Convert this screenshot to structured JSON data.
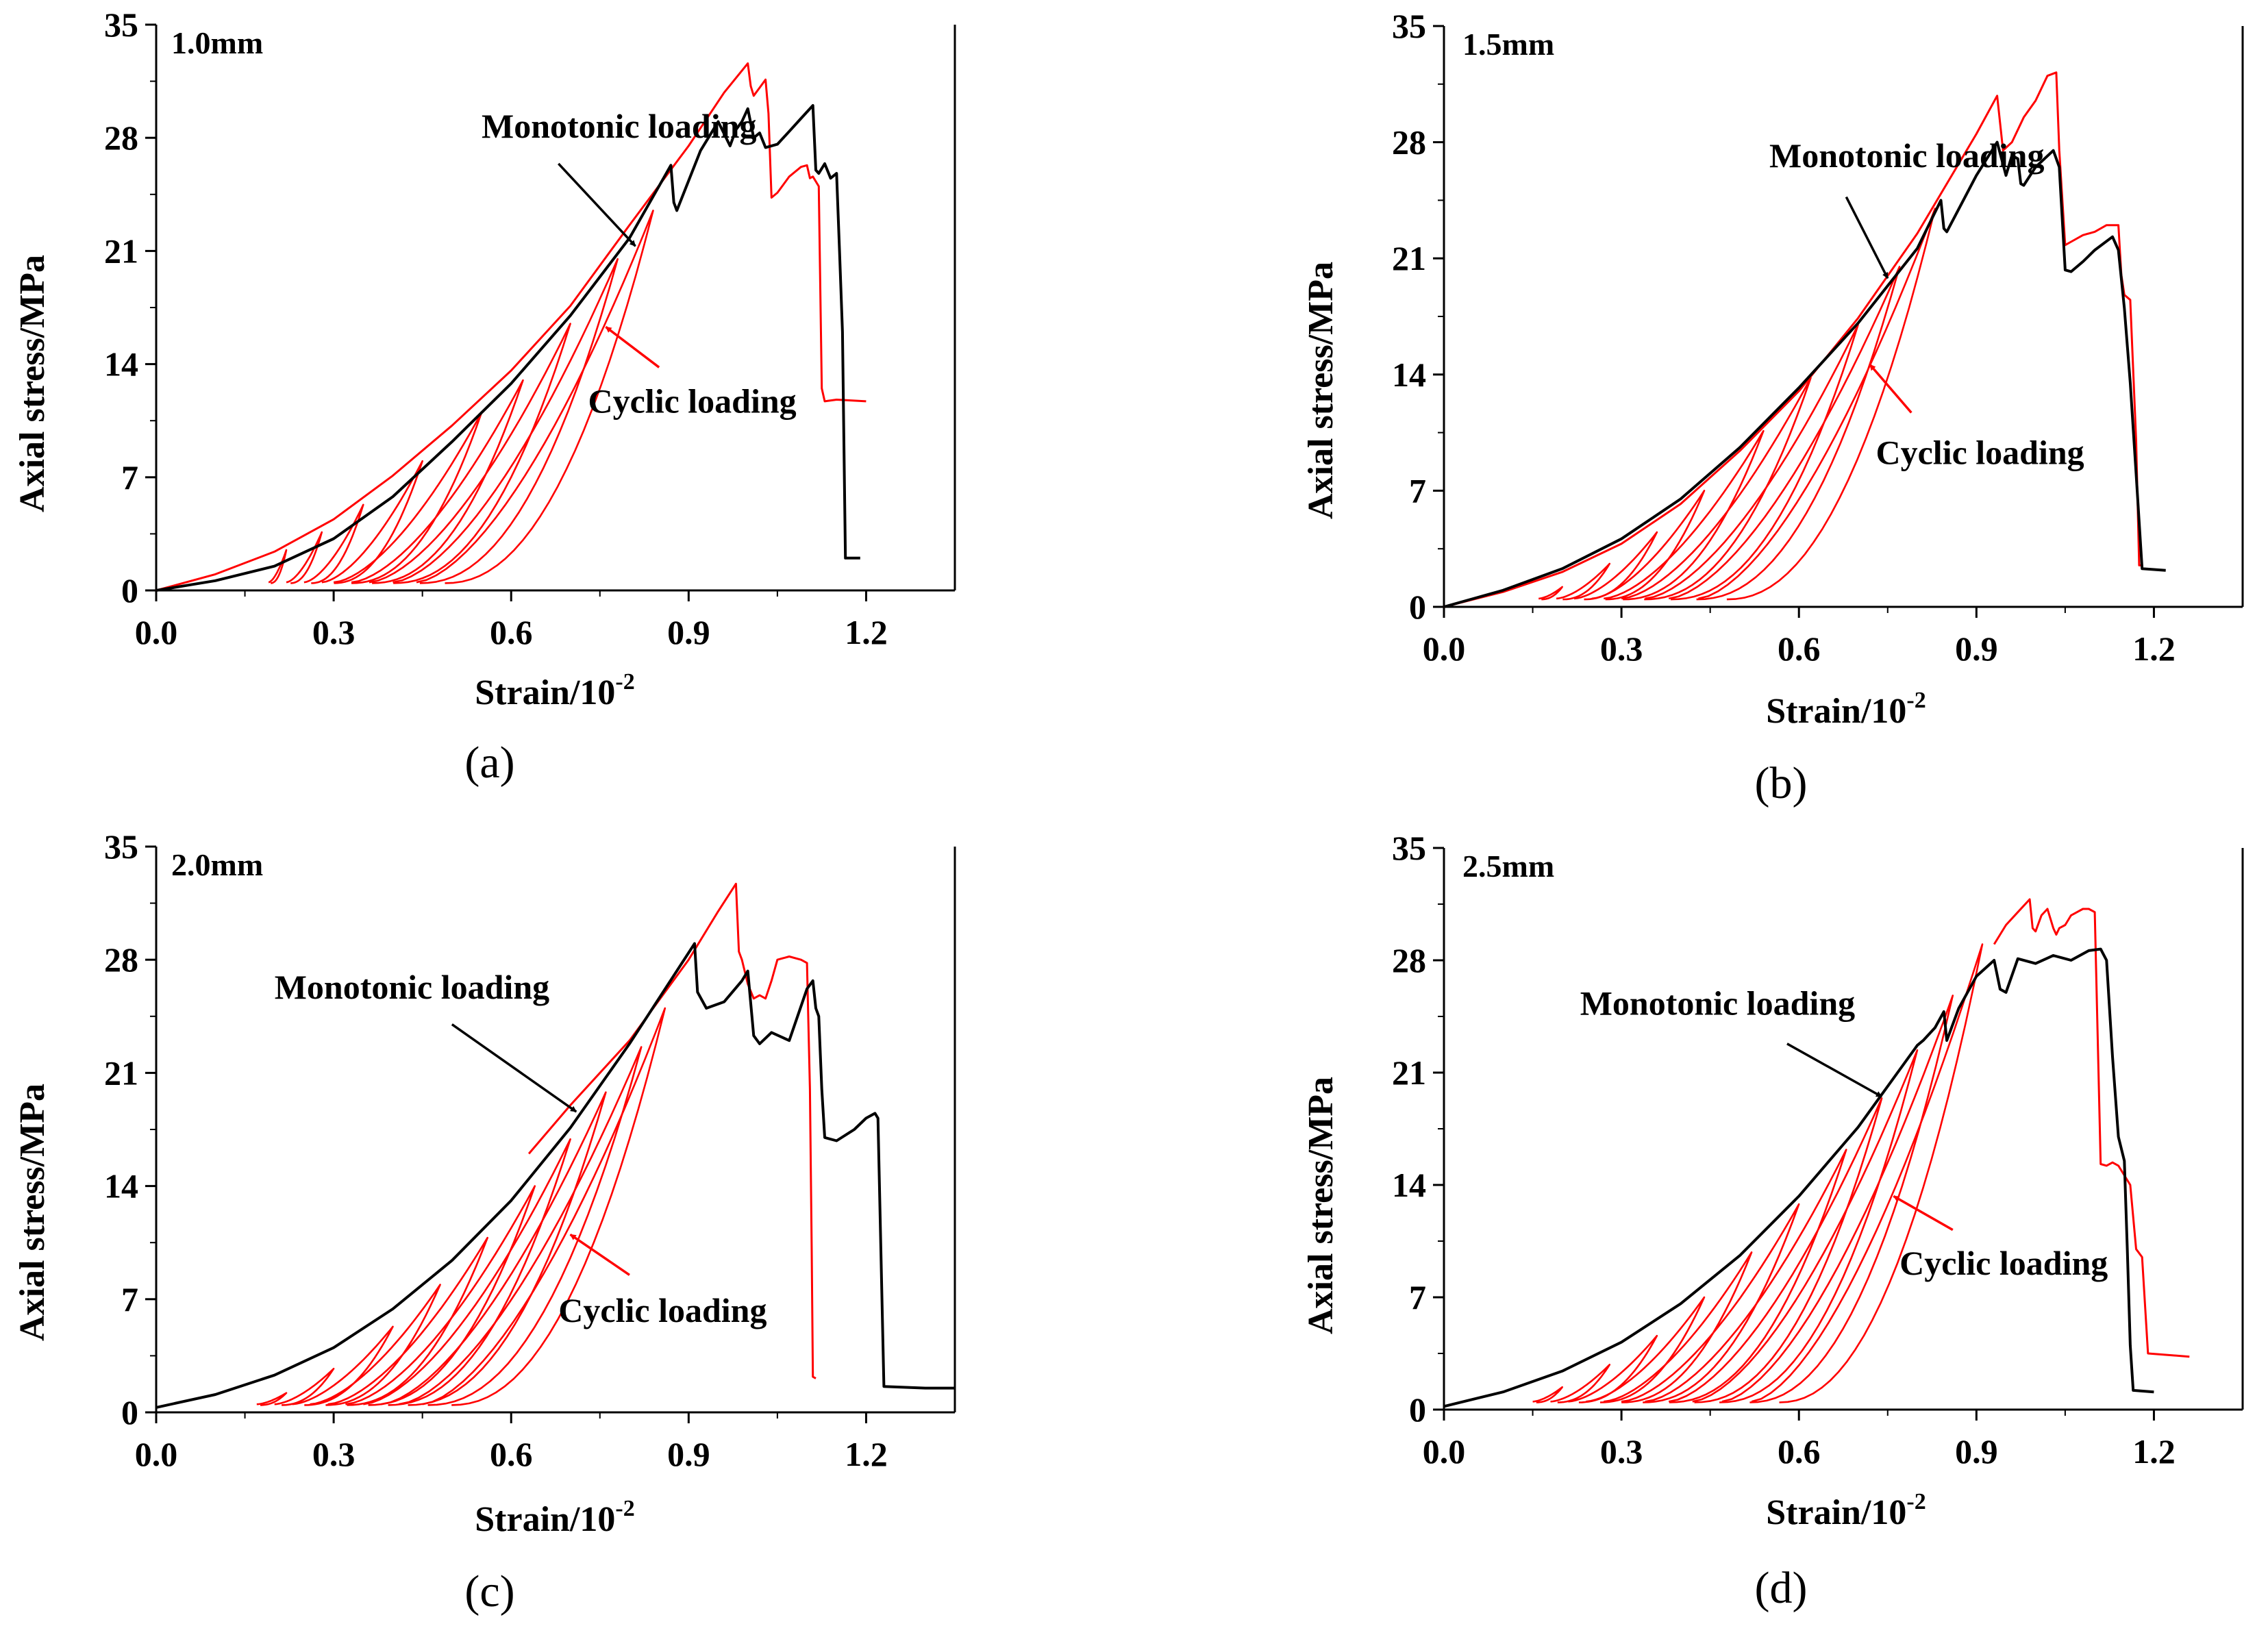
{
  "colors": {
    "monotonic": "#000000",
    "cyclic": "#ff0000",
    "axis": "#000000"
  },
  "chart_data": [
    {
      "id": "a",
      "type": "line",
      "caption": "(a)",
      "tag": "1.0mm",
      "xlabel": "Strain/10",
      "xlabel_sup": "-2",
      "ylabel": "Axial stress/MPa",
      "xlim": [
        0.0,
        1.35
      ],
      "ylim": [
        0,
        35
      ],
      "xticks": [
        0.0,
        0.3,
        0.6,
        0.9,
        1.2
      ],
      "xtick_labels": [
        "0.0",
        "0.3",
        "0.6",
        "0.9",
        "1.2"
      ],
      "yticks": [
        0,
        7,
        14,
        21,
        28,
        35
      ],
      "ytick_labels": [
        "0",
        "7",
        "14",
        "21",
        "28",
        "35"
      ],
      "annotations": {
        "monotonic": {
          "text": "Monotonic loading",
          "text_at": [
            0.55,
            28.0
          ],
          "arrow_from": [
            0.68,
            26.4
          ],
          "arrow_to": [
            0.81,
            21.3
          ]
        },
        "cyclic": {
          "text": "Cyclic loading",
          "text_at": [
            0.73,
            11.0
          ],
          "arrow_from": [
            0.85,
            13.8
          ],
          "arrow_to": [
            0.76,
            16.3
          ]
        }
      },
      "series": [
        {
          "name": "Monotonic loading",
          "color": "#000000",
          "x": [
            0.0,
            0.1,
            0.2,
            0.3,
            0.4,
            0.5,
            0.6,
            0.7,
            0.8,
            0.87,
            0.875,
            0.88,
            0.92,
            0.95,
            0.97,
            0.98,
            0.99,
            1.0,
            1.01,
            1.02,
            1.03,
            1.05,
            1.07,
            1.09,
            1.11,
            1.115,
            1.12,
            1.13,
            1.14,
            1.15,
            1.155,
            1.16,
            1.165,
            1.17,
            1.19
          ],
          "y": [
            0.0,
            0.6,
            1.5,
            3.2,
            5.8,
            9.2,
            12.8,
            17.0,
            21.8,
            26.3,
            24.0,
            23.5,
            27.2,
            29.0,
            27.5,
            28.5,
            29.0,
            29.8,
            28.0,
            28.3,
            27.4,
            27.6,
            28.4,
            29.2,
            30.0,
            26.0,
            25.8,
            26.4,
            25.5,
            25.8,
            21.0,
            16.0,
            2.0,
            2.0,
            2.0
          ]
        },
        {
          "name": "Cyclic loading",
          "color": "#ff0000",
          "x": [
            0.0,
            0.1,
            0.2,
            0.3,
            0.4,
            0.5,
            0.6,
            0.7,
            0.8,
            0.9,
            0.96,
            1.0,
            1.005,
            1.01,
            1.02,
            1.03,
            1.035,
            1.04,
            1.05,
            1.07,
            1.09,
            1.1,
            1.105,
            1.11,
            1.12,
            1.125,
            1.13,
            1.15,
            1.2
          ],
          "y": [
            0.0,
            1.0,
            2.4,
            4.4,
            7.1,
            10.2,
            13.6,
            17.6,
            22.6,
            27.5,
            30.8,
            32.6,
            31.2,
            30.6,
            31.1,
            31.6,
            29.5,
            24.3,
            24.6,
            25.6,
            26.2,
            26.3,
            25.5,
            25.6,
            25.0,
            12.5,
            11.7,
            11.8,
            11.7
          ]
        }
      ],
      "cyclic_loops": [
        {
          "x_start": 0.19,
          "x_peak": 0.22,
          "y_peak": 2.5
        },
        {
          "x_start": 0.22,
          "x_peak": 0.28,
          "y_peak": 3.6
        },
        {
          "x_start": 0.25,
          "x_peak": 0.35,
          "y_peak": 5.3
        },
        {
          "x_start": 0.28,
          "x_peak": 0.45,
          "y_peak": 8.0
        },
        {
          "x_start": 0.3,
          "x_peak": 0.55,
          "y_peak": 11.0
        },
        {
          "x_start": 0.33,
          "x_peak": 0.62,
          "y_peak": 13.0
        },
        {
          "x_start": 0.36,
          "x_peak": 0.7,
          "y_peak": 16.5
        },
        {
          "x_start": 0.4,
          "x_peak": 0.78,
          "y_peak": 20.5
        },
        {
          "x_start": 0.44,
          "x_peak": 0.84,
          "y_peak": 23.5
        }
      ]
    },
    {
      "id": "b",
      "type": "line",
      "caption": "(b)",
      "tag": "1.5mm",
      "xlabel": "Strain/10",
      "xlabel_sup": "-2",
      "ylabel": "Axial stress/MPa",
      "xlim": [
        0.0,
        1.35
      ],
      "ylim": [
        0,
        35
      ],
      "xticks": [
        0.0,
        0.3,
        0.6,
        0.9,
        1.2
      ],
      "xtick_labels": [
        "0.0",
        "0.3",
        "0.6",
        "0.9",
        "1.2"
      ],
      "yticks": [
        0,
        7,
        14,
        21,
        28,
        35
      ],
      "ytick_labels": [
        "0",
        "7",
        "14",
        "21",
        "28",
        "35"
      ],
      "annotations": {
        "monotonic": {
          "text": "Monotonic loading",
          "text_at": [
            0.55,
            26.5
          ],
          "arrow_from": [
            0.68,
            24.7
          ],
          "arrow_to": [
            0.75,
            19.8
          ]
        },
        "cyclic": {
          "text": "Cyclic loading",
          "text_at": [
            0.73,
            8.6
          ],
          "arrow_from": [
            0.79,
            11.7
          ],
          "arrow_to": [
            0.72,
            14.6
          ]
        }
      },
      "series": [
        {
          "name": "Monotonic loading",
          "color": "#000000",
          "x": [
            0.0,
            0.1,
            0.2,
            0.3,
            0.4,
            0.5,
            0.6,
            0.7,
            0.8,
            0.84,
            0.845,
            0.85,
            0.9,
            0.935,
            0.95,
            0.96,
            0.97,
            0.975,
            0.98,
            1.0,
            1.03,
            1.04,
            1.05,
            1.06,
            1.08,
            1.1,
            1.13,
            1.14,
            1.15,
            1.16,
            1.17,
            1.18,
            1.22
          ],
          "y": [
            0.0,
            1.0,
            2.3,
            4.1,
            6.5,
            9.6,
            13.2,
            17.1,
            21.6,
            24.5,
            22.8,
            22.6,
            26.0,
            28.0,
            26.0,
            27.2,
            27.0,
            25.5,
            25.4,
            26.5,
            27.5,
            26.5,
            20.3,
            20.2,
            20.8,
            21.5,
            22.3,
            21.5,
            18.0,
            13.5,
            8.0,
            2.3,
            2.2
          ]
        },
        {
          "name": "Cyclic loading",
          "color": "#ff0000",
          "x": [
            0.0,
            0.1,
            0.2,
            0.3,
            0.4,
            0.5,
            0.6,
            0.7,
            0.8,
            0.9,
            0.935,
            0.945,
            0.96,
            0.98,
            1.0,
            1.02,
            1.035,
            1.04,
            1.05,
            1.06,
            1.08,
            1.1,
            1.12,
            1.14,
            1.145,
            1.15,
            1.16,
            1.17,
            1.175,
            1.18
          ],
          "y": [
            0.0,
            0.9,
            2.1,
            3.8,
            6.2,
            9.4,
            13.0,
            17.4,
            22.5,
            28.5,
            30.8,
            27.5,
            28.0,
            29.5,
            30.5,
            32.0,
            32.2,
            27.5,
            21.8,
            22.0,
            22.4,
            22.6,
            23.0,
            23.0,
            20.0,
            18.8,
            18.5,
            10.0,
            2.5,
            2.5
          ]
        }
      ],
      "cyclic_loops": [
        {
          "x_start": 0.16,
          "x_peak": 0.2,
          "y_peak": 1.2
        },
        {
          "x_start": 0.19,
          "x_peak": 0.28,
          "y_peak": 2.6
        },
        {
          "x_start": 0.22,
          "x_peak": 0.36,
          "y_peak": 4.5
        },
        {
          "x_start": 0.25,
          "x_peak": 0.44,
          "y_peak": 7.0
        },
        {
          "x_start": 0.27,
          "x_peak": 0.54,
          "y_peak": 10.6
        },
        {
          "x_start": 0.3,
          "x_peak": 0.62,
          "y_peak": 13.8
        },
        {
          "x_start": 0.34,
          "x_peak": 0.7,
          "y_peak": 17.0
        },
        {
          "x_start": 0.38,
          "x_peak": 0.77,
          "y_peak": 20.5
        },
        {
          "x_start": 0.43,
          "x_peak": 0.83,
          "y_peak": 24.0
        }
      ]
    },
    {
      "id": "c",
      "type": "line",
      "caption": "(c)",
      "tag": "2.0mm",
      "xlabel": "Strain/10",
      "xlabel_sup": "-2",
      "ylabel": "Axial stress/MPa",
      "xlim": [
        0.0,
        1.35
      ],
      "ylim": [
        0,
        35
      ],
      "xticks": [
        0.0,
        0.3,
        0.6,
        0.9,
        1.2
      ],
      "xtick_labels": [
        "0.0",
        "0.3",
        "0.6",
        "0.9",
        "1.2"
      ],
      "yticks": [
        0,
        7,
        14,
        21,
        28,
        35
      ],
      "ytick_labels": [
        "0",
        "7",
        "14",
        "21",
        "28",
        "35"
      ],
      "annotations": {
        "monotonic": {
          "text": "Monotonic loading",
          "text_at": [
            0.2,
            25.6
          ],
          "arrow_from": [
            0.5,
            24.0
          ],
          "arrow_to": [
            0.71,
            18.6
          ]
        },
        "cyclic": {
          "text": "Cyclic loading",
          "text_at": [
            0.68,
            5.6
          ],
          "arrow_from": [
            0.8,
            8.5
          ],
          "arrow_to": [
            0.7,
            11.0
          ]
        }
      },
      "series": [
        {
          "name": "Monotonic loading",
          "color": "#000000",
          "x": [
            0.0,
            0.1,
            0.2,
            0.3,
            0.4,
            0.5,
            0.6,
            0.7,
            0.8,
            0.91,
            0.915,
            0.93,
            0.96,
            0.99,
            1.0,
            1.01,
            1.02,
            1.04,
            1.07,
            1.1,
            1.11,
            1.115,
            1.12,
            1.125,
            1.13,
            1.15,
            1.18,
            1.2,
            1.215,
            1.22,
            1.225,
            1.23,
            1.3,
            1.35
          ],
          "y": [
            0.3,
            1.1,
            2.3,
            4.0,
            6.4,
            9.4,
            13.1,
            17.6,
            22.8,
            29.0,
            26.0,
            25.0,
            25.4,
            26.7,
            27.3,
            23.3,
            22.8,
            23.5,
            23.0,
            26.2,
            26.7,
            25.0,
            24.5,
            20.0,
            17.0,
            16.8,
            17.5,
            18.2,
            18.5,
            18.2,
            10.0,
            1.6,
            1.5,
            1.5
          ]
        },
        {
          "name": "Cyclic loading",
          "color": "#ff0000",
          "x": [
            0.63,
            0.7,
            0.8,
            0.9,
            0.95,
            0.98,
            0.985,
            0.99,
            1.0,
            1.01,
            1.02,
            1.03,
            1.04,
            1.05,
            1.07,
            1.09,
            1.1,
            1.105,
            1.108,
            1.11,
            1.115
          ],
          "y": [
            16.0,
            19.0,
            23.0,
            28.0,
            31.0,
            32.7,
            28.5,
            28.0,
            26.5,
            25.6,
            25.8,
            25.6,
            26.7,
            28.0,
            28.2,
            28.0,
            27.8,
            20.0,
            10.0,
            2.2,
            2.1
          ]
        }
      ],
      "cyclic_loops": [
        {
          "x_start": 0.17,
          "x_peak": 0.22,
          "y_peak": 1.2
        },
        {
          "x_start": 0.2,
          "x_peak": 0.3,
          "y_peak": 2.7
        },
        {
          "x_start": 0.23,
          "x_peak": 0.4,
          "y_peak": 5.3
        },
        {
          "x_start": 0.26,
          "x_peak": 0.48,
          "y_peak": 7.9
        },
        {
          "x_start": 0.29,
          "x_peak": 0.56,
          "y_peak": 10.8
        },
        {
          "x_start": 0.32,
          "x_peak": 0.64,
          "y_peak": 14.0
        },
        {
          "x_start": 0.35,
          "x_peak": 0.7,
          "y_peak": 16.9
        },
        {
          "x_start": 0.38,
          "x_peak": 0.76,
          "y_peak": 19.8
        },
        {
          "x_start": 0.41,
          "x_peak": 0.82,
          "y_peak": 22.6
        },
        {
          "x_start": 0.45,
          "x_peak": 0.86,
          "y_peak": 25.0
        }
      ]
    },
    {
      "id": "d",
      "type": "line",
      "caption": "(d)",
      "tag": "2.5mm",
      "xlabel": "Strain/10",
      "xlabel_sup": "-2",
      "ylabel": "Axial stress/MPa",
      "xlim": [
        0.0,
        1.35
      ],
      "ylim": [
        0,
        35
      ],
      "xticks": [
        0.0,
        0.3,
        0.6,
        0.9,
        1.2
      ],
      "xtick_labels": [
        "0.0",
        "0.3",
        "0.6",
        "0.9",
        "1.2"
      ],
      "yticks": [
        0,
        7,
        14,
        21,
        28,
        35
      ],
      "ytick_labels": [
        "0",
        "7",
        "14",
        "21",
        "28",
        "35"
      ],
      "annotations": {
        "monotonic": {
          "text": "Monotonic loading",
          "text_at": [
            0.23,
            24.6
          ],
          "arrow_from": [
            0.58,
            22.8
          ],
          "arrow_to": [
            0.74,
            19.5
          ]
        },
        "cyclic": {
          "text": "Cyclic loading",
          "text_at": [
            0.77,
            8.4
          ],
          "arrow_from": [
            0.86,
            11.2
          ],
          "arrow_to": [
            0.76,
            13.3
          ]
        }
      },
      "series": [
        {
          "name": "Monotonic loading",
          "color": "#000000",
          "x": [
            0.0,
            0.1,
            0.2,
            0.3,
            0.4,
            0.5,
            0.6,
            0.7,
            0.8,
            0.81,
            0.83,
            0.845,
            0.85,
            0.87,
            0.9,
            0.93,
            0.94,
            0.95,
            0.97,
            1.0,
            1.03,
            1.06,
            1.09,
            1.11,
            1.12,
            1.13,
            1.14,
            1.15,
            1.155,
            1.16,
            1.165,
            1.2
          ],
          "y": [
            0.2,
            1.1,
            2.4,
            4.2,
            6.6,
            9.6,
            13.3,
            17.6,
            22.7,
            23.0,
            23.8,
            24.8,
            23.0,
            25.0,
            27.0,
            28.0,
            26.2,
            26.0,
            28.1,
            27.8,
            28.3,
            28.0,
            28.6,
            28.7,
            28.0,
            22.0,
            17.0,
            15.5,
            10.0,
            4.0,
            1.2,
            1.1
          ]
        },
        {
          "name": "Cyclic loading",
          "color": "#ff0000",
          "x": [
            0.93,
            0.95,
            0.97,
            0.99,
            0.995,
            1.0,
            1.01,
            1.02,
            1.03,
            1.035,
            1.04,
            1.05,
            1.06,
            1.07,
            1.08,
            1.09,
            1.1,
            1.11,
            1.12,
            1.13,
            1.14,
            1.16,
            1.17,
            1.18,
            1.19,
            1.26
          ],
          "y": [
            29.0,
            30.2,
            31.0,
            31.8,
            30.0,
            29.8,
            30.8,
            31.2,
            30.0,
            29.6,
            30.0,
            30.2,
            30.8,
            31.0,
            31.2,
            31.2,
            31.0,
            15.3,
            15.2,
            15.4,
            15.2,
            14.0,
            10.0,
            9.5,
            3.5,
            3.3
          ]
        }
      ],
      "cyclic_loops": [
        {
          "x_start": 0.15,
          "x_peak": 0.2,
          "y_peak": 1.4
        },
        {
          "x_start": 0.18,
          "x_peak": 0.28,
          "y_peak": 2.8
        },
        {
          "x_start": 0.21,
          "x_peak": 0.36,
          "y_peak": 4.6
        },
        {
          "x_start": 0.24,
          "x_peak": 0.44,
          "y_peak": 7.0
        },
        {
          "x_start": 0.27,
          "x_peak": 0.52,
          "y_peak": 9.8
        },
        {
          "x_start": 0.3,
          "x_peak": 0.6,
          "y_peak": 12.8
        },
        {
          "x_start": 0.34,
          "x_peak": 0.68,
          "y_peak": 16.2
        },
        {
          "x_start": 0.38,
          "x_peak": 0.74,
          "y_peak": 19.4
        },
        {
          "x_start": 0.42,
          "x_peak": 0.8,
          "y_peak": 22.4
        },
        {
          "x_start": 0.47,
          "x_peak": 0.86,
          "y_peak": 25.8
        },
        {
          "x_start": 0.52,
          "x_peak": 0.91,
          "y_peak": 29.0
        }
      ]
    }
  ]
}
